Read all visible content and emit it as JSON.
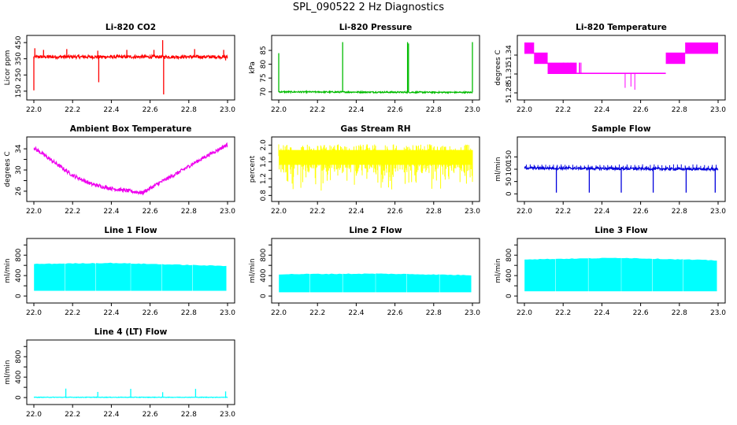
{
  "figure_title": "SPL_090522  2 Hz Diagnostics",
  "chart_data": [
    {
      "type": "line",
      "title": "Li-820 CO2",
      "ylabel": "Licor ppm",
      "color": "#ff0000",
      "xlim": [
        22.0,
        23.0
      ],
      "ylim": [
        120,
        470
      ],
      "xticks": [
        "22.0",
        "22.2",
        "22.4",
        "22.6",
        "22.8",
        "23.0"
      ],
      "yticks": [
        150,
        250,
        350,
        450
      ],
      "series": [
        {
          "name": "CO2",
          "kind": "noise",
          "base": [
            [
              22.0,
              362
            ],
            [
              23.0,
              362
            ]
          ],
          "noise": 10,
          "spikes": [
            [
              22.0,
              155
            ],
            [
              22.005,
              415
            ],
            [
              22.05,
              405
            ],
            [
              22.17,
              410
            ],
            [
              22.33,
              400
            ],
            [
              22.335,
              205
            ],
            [
              22.48,
              405
            ],
            [
              22.62,
              405
            ],
            [
              22.665,
              465
            ],
            [
              22.67,
              130
            ],
            [
              22.83,
              410
            ],
            [
              22.98,
              405
            ],
            [
              22.99,
              340
            ]
          ],
          "spike_dir": 0
        }
      ]
    },
    {
      "type": "line",
      "title": "Li-820 Pressure",
      "ylabel": "kPa",
      "color": "#00bb00",
      "xlim": [
        22.0,
        23.0
      ],
      "ylim": [
        68.5,
        89
      ],
      "xticks": [
        "22.0",
        "22.2",
        "22.4",
        "22.6",
        "22.8",
        "23.0"
      ],
      "yticks": [
        70,
        75,
        80,
        85
      ],
      "series": [
        {
          "name": "Pressure",
          "kind": "noise",
          "base": [
            [
              22.0,
              70.0
            ],
            [
              23.0,
              69.8
            ]
          ],
          "noise": 0.25,
          "spikes": [
            [
              22.0,
              84.0
            ],
            [
              22.33,
              88.0
            ],
            [
              22.665,
              88.0
            ],
            [
              22.67,
              87.5
            ],
            [
              23.0,
              88.0
            ]
          ],
          "spike_dir": 0
        }
      ]
    },
    {
      "type": "line",
      "title": "Li-820 Temperature",
      "ylabel": "degrees C",
      "color": "#ff00ff",
      "xlim": [
        22.0,
        23.0
      ],
      "ylim": [
        51.275,
        51.365
      ],
      "xticks": [
        "22.0",
        "22.2",
        "22.4",
        "22.6",
        "22.8",
        "23.0"
      ],
      "yticks": [
        51.28,
        51.31,
        51.34
      ],
      "ytick_labels": [
        "51.28",
        "51.31",
        "51.34"
      ],
      "series": [
        {
          "name": "Temperature",
          "kind": "steps",
          "bands": [
            [
              22.0,
              22.05,
              51.342,
              51.36
            ],
            [
              22.05,
              22.12,
              51.326,
              51.344
            ],
            [
              22.12,
              22.27,
              51.31,
              51.328
            ],
            [
              22.27,
              22.73,
              51.31,
              51.312
            ],
            [
              22.73,
              22.83,
              51.326,
              51.344
            ],
            [
              22.83,
              23.0,
              51.342,
              51.36
            ]
          ],
          "spikes": [
            [
              22.52,
              51.288
            ],
            [
              22.55,
              51.29
            ],
            [
              22.57,
              51.285
            ]
          ]
        }
      ]
    },
    {
      "type": "line",
      "title": "Ambient Box Temperature",
      "ylabel": "degrees C",
      "color": "#ee00ee",
      "xlim": [
        22.0,
        23.0
      ],
      "ylim": [
        24.8,
        35.5
      ],
      "xticks": [
        "22.0",
        "22.2",
        "22.4",
        "22.6",
        "22.8",
        "23.0"
      ],
      "yticks": [
        26,
        28,
        30,
        32,
        34
      ],
      "ytick_labels": [
        "26",
        "",
        "30",
        "",
        "34"
      ],
      "series": [
        {
          "name": "Ambient",
          "kind": "noise",
          "base": [
            [
              22.0,
              34.2
            ],
            [
              22.1,
              31.6
            ],
            [
              22.2,
              29.0
            ],
            [
              22.3,
              27.3
            ],
            [
              22.4,
              26.5
            ],
            [
              22.5,
              26.0
            ],
            [
              22.56,
              25.7
            ],
            [
              22.65,
              27.6
            ],
            [
              22.75,
              29.6
            ],
            [
              22.85,
              31.8
            ],
            [
              23.0,
              34.8
            ]
          ],
          "noise": 0.35,
          "spikes": [],
          "spike_dir": 0
        }
      ]
    },
    {
      "type": "line",
      "title": "Gas Stream RH",
      "ylabel": "percent",
      "color": "#ffff00",
      "xlim": [
        22.0,
        23.0
      ],
      "ylim": [
        0.75,
        2.1
      ],
      "xticks": [
        "22.0",
        "22.2",
        "22.4",
        "22.6",
        "22.8",
        "23.0"
      ],
      "yticks": [
        0.8,
        1.2,
        1.6,
        2.0
      ],
      "ytick_labels": [
        "0.8",
        "1.2",
        "1.6",
        "2.0"
      ],
      "extra_yticks": [
        1.0,
        1.4,
        1.8
      ],
      "series": [
        {
          "name": "RH",
          "kind": "band",
          "top": 1.88,
          "low": 0.9,
          "spread": 0.55,
          "density": 420,
          "over": 2.02
        }
      ]
    },
    {
      "type": "line",
      "title": "Sample Flow",
      "ylabel": "ml/min",
      "color": "#0000dd",
      "xlim": [
        22.0,
        23.0
      ],
      "ylim": [
        -15,
        215
      ],
      "xticks": [
        "22.0",
        "22.2",
        "22.4",
        "22.6",
        "22.8",
        "23.0"
      ],
      "yticks": [
        0,
        50,
        100,
        150
      ],
      "series": [
        {
          "name": "Sample",
          "kind": "noise",
          "base": [
            [
              22.0,
              105
            ],
            [
              23.0,
              100
            ]
          ],
          "noise": 5,
          "spikes": [
            [
              22.165,
              5
            ],
            [
              22.335,
              5
            ],
            [
              22.5,
              5
            ],
            [
              22.665,
              5
            ],
            [
              22.835,
              5
            ],
            [
              22.985,
              5
            ]
          ],
          "up_spikes_every": 0.02,
          "up_spike_height": 120,
          "spike_dir": 0
        }
      ]
    },
    {
      "type": "line",
      "title": "Line 1 Flow",
      "ylabel": "ml/min",
      "color": "#00ffff",
      "xlim": [
        22.0,
        23.0
      ],
      "ylim": [
        -60,
        1050
      ],
      "xticks": [
        "22.0",
        "22.2",
        "22.4",
        "22.6",
        "22.8",
        "23.0"
      ],
      "yticks": [
        0,
        400,
        800
      ],
      "extra_yticks": [
        200,
        600,
        1000
      ],
      "series": [
        {
          "name": "Line1",
          "kind": "block",
          "top": [
            [
              22.0,
              620
            ],
            [
              22.4,
              640
            ],
            [
              22.6,
              620
            ],
            [
              23.0,
              580
            ]
          ],
          "bottom": 110,
          "gaps": [
            22.16,
            22.32,
            22.5,
            22.66,
            22.82
          ],
          "tail": [
            22.99,
            500
          ]
        }
      ]
    },
    {
      "type": "line",
      "title": "Line 2 Flow",
      "ylabel": "ml/min",
      "color": "#00ffff",
      "xlim": [
        22.0,
        23.0
      ],
      "ylim": [
        -60,
        1050
      ],
      "xticks": [
        "22.0",
        "22.2",
        "22.4",
        "22.6",
        "22.8",
        "23.0"
      ],
      "yticks": [
        0,
        400,
        800
      ],
      "extra_yticks": [
        200,
        600,
        1000
      ],
      "series": [
        {
          "name": "Line2",
          "kind": "block",
          "top": [
            [
              22.0,
              420
            ],
            [
              22.5,
              430
            ],
            [
              22.7,
              420
            ],
            [
              23.0,
              400
            ]
          ],
          "bottom": 80,
          "gaps": [
            22.16,
            22.33,
            22.5,
            22.66,
            22.83
          ],
          "tail": [
            22.99,
            330
          ]
        }
      ]
    },
    {
      "type": "line",
      "title": "Line 3 Flow",
      "ylabel": "ml/min",
      "color": "#00ffff",
      "xlim": [
        22.0,
        23.0
      ],
      "ylim": [
        -60,
        1050
      ],
      "xticks": [
        "22.0",
        "22.2",
        "22.4",
        "22.6",
        "22.8",
        "23.0"
      ],
      "yticks": [
        0,
        400,
        800
      ],
      "extra_yticks": [
        200,
        600,
        1000
      ],
      "series": [
        {
          "name": "Line3",
          "kind": "block",
          "top": [
            [
              22.0,
              710
            ],
            [
              22.5,
              740
            ],
            [
              22.7,
              720
            ],
            [
              23.0,
              690
            ]
          ],
          "bottom": 100,
          "gaps": [
            22.16,
            22.33,
            22.5,
            22.66,
            22.82
          ],
          "tail": [
            22.99,
            560
          ]
        }
      ]
    },
    {
      "type": "line",
      "title": "Line 4 (LT) Flow",
      "ylabel": "ml/min",
      "color": "#00ffff",
      "xlim": [
        22.0,
        23.0
      ],
      "ylim": [
        -60,
        1050
      ],
      "xticks": [
        "22.0",
        "22.2",
        "22.4",
        "22.6",
        "22.8",
        "23.0"
      ],
      "yticks": [
        0,
        400,
        800
      ],
      "extra_yticks": [
        200,
        600,
        1000
      ],
      "series": [
        {
          "name": "Line4",
          "kind": "noise",
          "base": [
            [
              22.0,
              5
            ],
            [
              23.0,
              5
            ]
          ],
          "noise": 5,
          "spikes": [
            [
              22.165,
              175
            ],
            [
              22.33,
              110
            ],
            [
              22.5,
              170
            ],
            [
              22.665,
              105
            ],
            [
              22.835,
              170
            ],
            [
              22.99,
              120
            ]
          ],
          "spike_dir": 0
        }
      ]
    }
  ]
}
